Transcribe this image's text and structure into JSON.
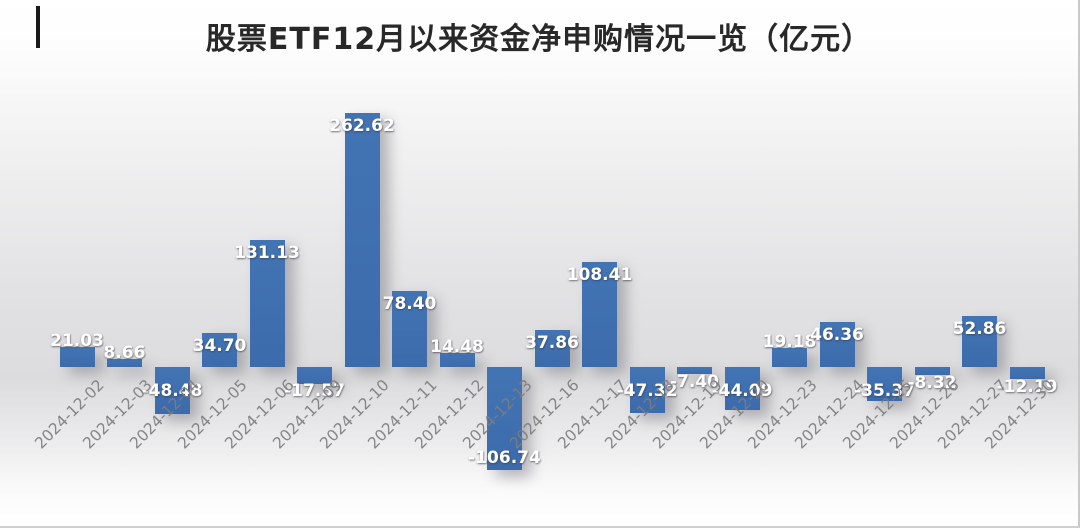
{
  "title": "股票ETF12月以来资金净申购情况一览（亿元）",
  "chart_data": {
    "type": "bar",
    "title": "股票ETF12月以来资金净申购情况一览（亿元）",
    "unit": "亿元",
    "categories": [
      "2024-12-02",
      "2024-12-03",
      "2024-12-04",
      "2024-12-05",
      "2024-12-06",
      "2024-12-09",
      "2024-12-10",
      "2024-12-11",
      "2024-12-12",
      "2024-12-13",
      "2024-12-16",
      "2024-12-17",
      "2024-12-18",
      "2024-12-19",
      "2024-12-20",
      "2024-12-23",
      "2024-12-24",
      "2024-12-25",
      "2024-12-26",
      "2024-12-27",
      "2024-12-30"
    ],
    "values": [
      21.03,
      8.66,
      -48.48,
      34.7,
      131.13,
      -17.57,
      262.62,
      78.4,
      14.48,
      -106.74,
      37.86,
      108.41,
      -47.32,
      -7.4,
      -44.09,
      19.18,
      46.36,
      -35.37,
      -8.32,
      52.86,
      -12.19
    ],
    "value_labels": [
      "21.03",
      "8.66",
      "-48.48",
      "34.70",
      "131.13",
      "-17.57",
      "262.62",
      "78.40",
      "14.48",
      "-106.74",
      "37.86",
      "108.41",
      "-47.32",
      "-7.40",
      "-44.09",
      "19.18",
      "46.36",
      "-35.37",
      "-8.32",
      "52.86",
      "-12.19"
    ],
    "bar_color": "#3d6dae",
    "value_label_color": "#ffffff",
    "axis_label_color": "#8b8b8b",
    "x_tick_rotation": -45,
    "ylim": [
      -130,
      280
    ],
    "grid": false,
    "legend": false
  }
}
